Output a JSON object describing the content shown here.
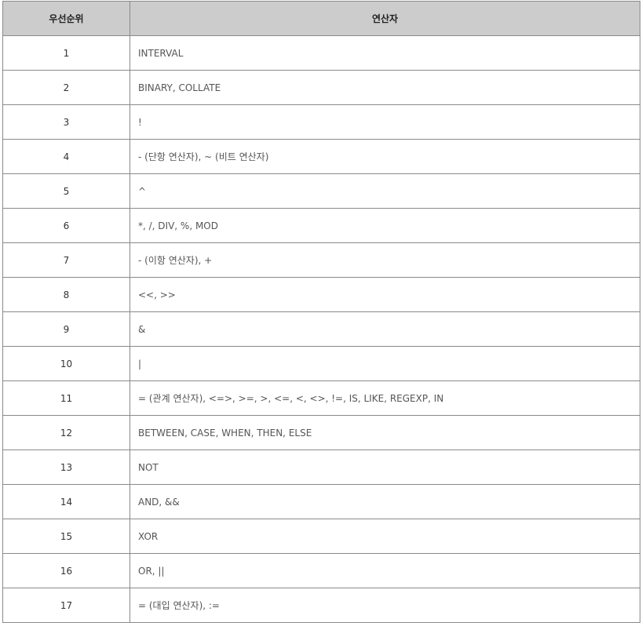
{
  "table": {
    "headers": {
      "rank": "우선순위",
      "operators": "연산자"
    },
    "rows": [
      {
        "rank": "1",
        "operators": "INTERVAL"
      },
      {
        "rank": "2",
        "operators": "BINARY, COLLATE"
      },
      {
        "rank": "3",
        "operators": "!"
      },
      {
        "rank": "4",
        "operators": "- (단항 연산자), ~ (비트 연산자)"
      },
      {
        "rank": "5",
        "operators": "^"
      },
      {
        "rank": "6",
        "operators": "*, /, DIV, %, MOD"
      },
      {
        "rank": "7",
        "operators": "- (이항 연산자), +"
      },
      {
        "rank": "8",
        "operators": "<<, >>"
      },
      {
        "rank": "9",
        "operators": "&"
      },
      {
        "rank": "10",
        "operators": "|"
      },
      {
        "rank": "11",
        "operators": "= (관계 연산자), <=>, >=, >, <=, <, <>, !=, IS, LIKE, REGEXP, IN"
      },
      {
        "rank": "12",
        "operators": "BETWEEN, CASE, WHEN, THEN, ELSE"
      },
      {
        "rank": "13",
        "operators": "NOT"
      },
      {
        "rank": "14",
        "operators": "AND, &&"
      },
      {
        "rank": "15",
        "operators": "XOR"
      },
      {
        "rank": "16",
        "operators": "OR, ||"
      },
      {
        "rank": "17",
        "operators": "= (대입 연산자), :="
      }
    ]
  },
  "colors": {
    "header_background": "#cccccc",
    "border": "#8a8a8a",
    "operator_text": "#555555",
    "rank_text": "#333333"
  }
}
